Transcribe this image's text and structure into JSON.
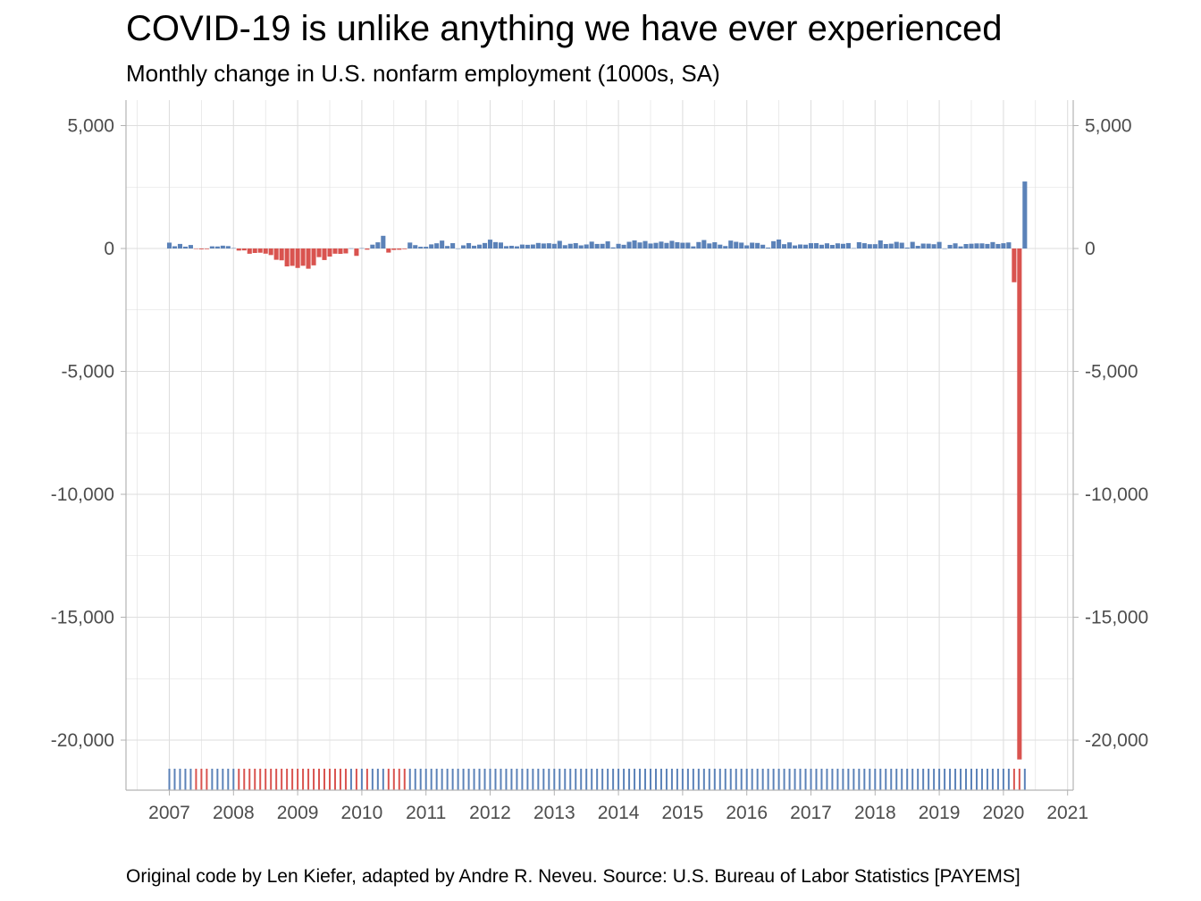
{
  "title": "COVID-19 is unlike anything we have ever experienced",
  "subtitle": "Monthly change in U.S. nonfarm employment (1000s, SA)",
  "caption": "Original code by Len Kiefer, adapted by Andre R. Neveu. Source: U.S. Bureau of Labor Statistics [PAYEMS]",
  "colors": {
    "positive": "#5b82b8",
    "negative": "#d9534f",
    "grid": "#dedede",
    "axis": "#b3b3b3",
    "tick_text": "#4d4d4d"
  },
  "chart_data": {
    "type": "bar",
    "xlabel": "",
    "ylabel": "",
    "x_tick_labels": [
      "2007",
      "2008",
      "2009",
      "2010",
      "2011",
      "2012",
      "2013",
      "2014",
      "2015",
      "2016",
      "2017",
      "2018",
      "2019",
      "2020",
      "2021"
    ],
    "y_ticks": [
      5000,
      0,
      -5000,
      -10000,
      -15000,
      -20000
    ],
    "y_tick_labels": [
      "5,000",
      "0",
      "-5,000",
      "-10,000",
      "-15,000",
      "-20,000"
    ],
    "xlim": [
      "2006-06",
      "2021-01"
    ],
    "ylim": [
      -22000,
      6000
    ],
    "secondary_y_axis": true,
    "grid": true,
    "rug_strip": "one tick per month along the bottom, colored by the sign of the monthly change",
    "start_month": "2007-01",
    "values": [
      238,
      91,
      185,
      75,
      142,
      -16,
      -32,
      -26,
      88,
      82,
      115,
      97,
      17,
      -85,
      -78,
      -214,
      -182,
      -172,
      -210,
      -267,
      -459,
      -481,
      -729,
      -706,
      -791,
      -703,
      -823,
      -686,
      -351,
      -470,
      -329,
      -212,
      -219,
      -200,
      7,
      -300,
      14,
      -48,
      156,
      251,
      516,
      -167,
      -58,
      -51,
      -27,
      241,
      137,
      71,
      70,
      168,
      212,
      322,
      102,
      217,
      2,
      128,
      220,
      112,
      157,
      223,
      360,
      260,
      243,
      96,
      110,
      88,
      160,
      150,
      161,
      225,
      203,
      214,
      190,
      311,
      135,
      192,
      218,
      127,
      164,
      279,
      185,
      189,
      291,
      45,
      190,
      151,
      272,
      329,
      246,
      304,
      202,
      230,
      280,
      227,
      312,
      255,
      234,
      238,
      86,
      262,
      344,
      206,
      254,
      157,
      100,
      321,
      272,
      239,
      126,
      237,
      225,
      153,
      38,
      297,
      365,
      176,
      249,
      124,
      164,
      155,
      216,
      219,
      152,
      211,
      145,
      210,
      190,
      221,
      14,
      256,
      216,
      175,
      176,
      330,
      182,
      196,
      270,
      235,
      37,
      270,
      108,
      200,
      196,
      174,
      267,
      1,
      147,
      210,
      85,
      182,
      194,
      207,
      208,
      185,
      261,
      184,
      214,
      251,
      -1373,
      -20787,
      2725
    ]
  }
}
